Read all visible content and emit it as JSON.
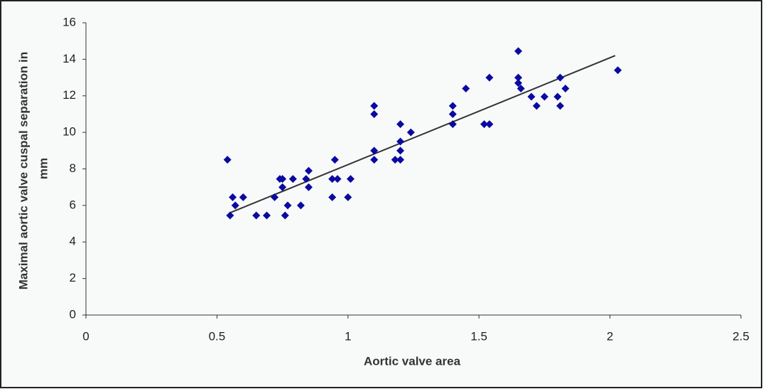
{
  "chart_data": {
    "type": "scatter",
    "xlabel": "Aortic valve area",
    "ylabel": [
      "Maximal  aortic valve cuspal separation in",
      "mm"
    ],
    "xlim": [
      0,
      2.5
    ],
    "ylim": [
      0,
      16
    ],
    "xticks": [
      0,
      0.5,
      1,
      1.5,
      2,
      2.5
    ],
    "yticks": [
      0,
      2,
      4,
      6,
      8,
      10,
      12,
      14,
      16
    ],
    "color": "#0a0aa0",
    "x": [
      0.54,
      0.55,
      0.56,
      0.57,
      0.6,
      0.65,
      0.69,
      0.72,
      0.74,
      0.75,
      0.75,
      0.76,
      0.77,
      0.79,
      0.82,
      0.84,
      0.85,
      0.85,
      0.94,
      0.94,
      0.95,
      0.96,
      1.0,
      1.01,
      1.1,
      1.1,
      1.1,
      1.1,
      1.18,
      1.2,
      1.2,
      1.2,
      1.2,
      1.24,
      1.4,
      1.4,
      1.4,
      1.45,
      1.52,
      1.54,
      1.54,
      1.65,
      1.65,
      1.65,
      1.66,
      1.7,
      1.72,
      1.75,
      1.8,
      1.81,
      1.81,
      1.83,
      2.03
    ],
    "values": [
      8.5,
      5.45,
      6.45,
      6,
      6.45,
      5.45,
      5.45,
      6.45,
      7.45,
      7.45,
      7,
      5.45,
      6,
      7.45,
      6,
      7.45,
      7,
      7.9,
      6.45,
      7.45,
      8.5,
      7.45,
      6.45,
      7.45,
      11.45,
      11,
      9,
      8.5,
      8.5,
      8.5,
      9,
      9.5,
      10.45,
      10,
      11.45,
      11,
      10.45,
      12.4,
      10.45,
      10.45,
      13,
      14.45,
      12.7,
      13,
      12.4,
      11.95,
      11.45,
      11.95,
      11.95,
      11.45,
      13,
      12.4,
      13.4
    ],
    "trendline": {
      "x": [
        0.55,
        2.02
      ],
      "values": [
        5.6,
        14.2
      ],
      "color": "#333333"
    }
  }
}
